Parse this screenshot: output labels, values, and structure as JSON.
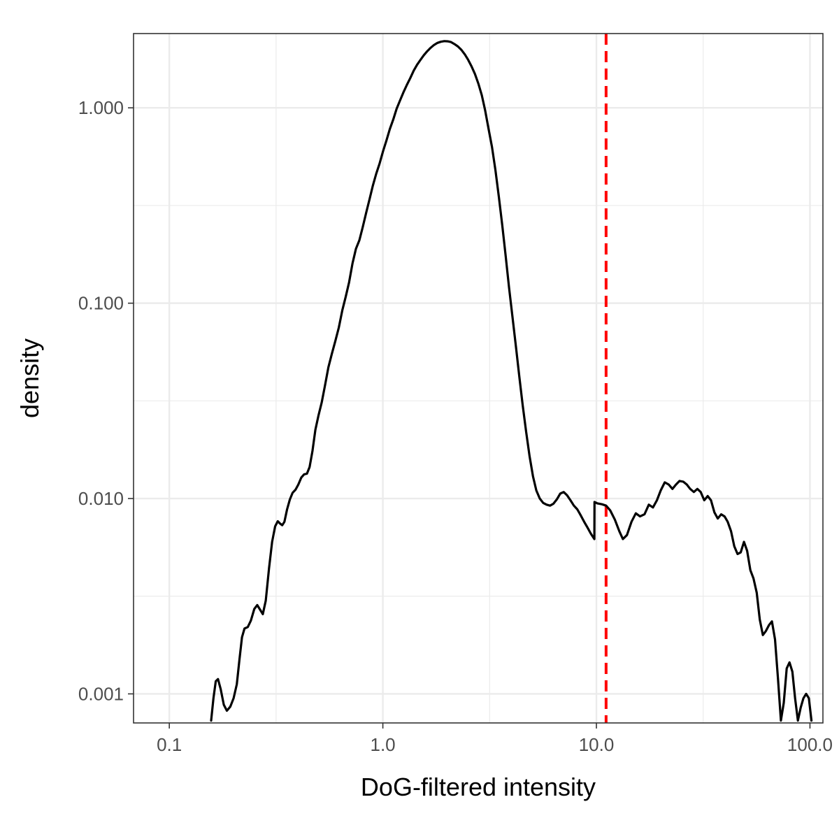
{
  "chart_data": {
    "type": "line",
    "xlabel": "DoG-filtered intensity",
    "ylabel": "density",
    "x_scale": "log10",
    "y_scale": "log10",
    "xlim": [
      0.068,
      115
    ],
    "ylim": [
      0.00071,
      2.4
    ],
    "x_ticks": [
      {
        "value": 0.1,
        "label": "0.1"
      },
      {
        "value": 1,
        "label": "1.0"
      },
      {
        "value": 10,
        "label": "10.0"
      },
      {
        "value": 100,
        "label": "100.0"
      }
    ],
    "y_ticks": [
      {
        "value": 0.001,
        "label": "0.001"
      },
      {
        "value": 0.01,
        "label": "0.010"
      },
      {
        "value": 0.1,
        "label": "0.100"
      },
      {
        "value": 1,
        "label": "1.000"
      }
    ],
    "grid": true,
    "colors": {
      "line": "#000000",
      "threshold": "#ff0000",
      "grid": "#ebebeb",
      "panel_border": "#333333"
    },
    "threshold": {
      "x": 11.1,
      "style": "dashed"
    },
    "series": [
      {
        "points": [
          [
            0.157,
            0.00073
          ],
          [
            0.161,
            0.00095
          ],
          [
            0.165,
            0.00116
          ],
          [
            0.169,
            0.00119
          ],
          [
            0.174,
            0.00106
          ],
          [
            0.18,
            0.00088
          ],
          [
            0.186,
            0.00082
          ],
          [
            0.193,
            0.00086
          ],
          [
            0.2,
            0.00095
          ],
          [
            0.207,
            0.00112
          ],
          [
            0.213,
            0.0015
          ],
          [
            0.219,
            0.00195
          ],
          [
            0.225,
            0.00216
          ],
          [
            0.233,
            0.0022
          ],
          [
            0.241,
            0.00237
          ],
          [
            0.25,
            0.00272
          ],
          [
            0.258,
            0.00285
          ],
          [
            0.266,
            0.0027
          ],
          [
            0.274,
            0.00256
          ],
          [
            0.283,
            0.003
          ],
          [
            0.293,
            0.0044
          ],
          [
            0.303,
            0.006
          ],
          [
            0.313,
            0.0072
          ],
          [
            0.322,
            0.00765
          ],
          [
            0.33,
            0.00745
          ],
          [
            0.338,
            0.0073
          ],
          [
            0.346,
            0.0076
          ],
          [
            0.356,
            0.0088
          ],
          [
            0.367,
            0.0099
          ],
          [
            0.378,
            0.0107
          ],
          [
            0.39,
            0.0111
          ],
          [
            0.402,
            0.0118
          ],
          [
            0.415,
            0.0128
          ],
          [
            0.428,
            0.0133
          ],
          [
            0.441,
            0.0134
          ],
          [
            0.454,
            0.0145
          ],
          [
            0.468,
            0.0175
          ],
          [
            0.483,
            0.0225
          ],
          [
            0.499,
            0.0265
          ],
          [
            0.517,
            0.031
          ],
          [
            0.536,
            0.038
          ],
          [
            0.556,
            0.047
          ],
          [
            0.577,
            0.055
          ],
          [
            0.599,
            0.064
          ],
          [
            0.622,
            0.075
          ],
          [
            0.646,
            0.092
          ],
          [
            0.67,
            0.108
          ],
          [
            0.695,
            0.128
          ],
          [
            0.721,
            0.16
          ],
          [
            0.748,
            0.19
          ],
          [
            0.776,
            0.21
          ],
          [
            0.805,
            0.245
          ],
          [
            0.835,
            0.29
          ],
          [
            0.866,
            0.34
          ],
          [
            0.898,
            0.4
          ],
          [
            0.931,
            0.46
          ],
          [
            0.966,
            0.52
          ],
          [
            1.002,
            0.6
          ],
          [
            1.039,
            0.68
          ],
          [
            1.078,
            0.78
          ],
          [
            1.118,
            0.87
          ],
          [
            1.16,
            0.99
          ],
          [
            1.203,
            1.09
          ],
          [
            1.248,
            1.2
          ],
          [
            1.295,
            1.31
          ],
          [
            1.344,
            1.42
          ],
          [
            1.394,
            1.55
          ],
          [
            1.446,
            1.66
          ],
          [
            1.5,
            1.76
          ],
          [
            1.556,
            1.86
          ],
          [
            1.614,
            1.95
          ],
          [
            1.675,
            2.03
          ],
          [
            1.738,
            2.1
          ],
          [
            1.803,
            2.15
          ],
          [
            1.87,
            2.18
          ],
          [
            1.94,
            2.195
          ],
          [
            2.013,
            2.19
          ],
          [
            2.088,
            2.17
          ],
          [
            2.166,
            2.12
          ],
          [
            2.247,
            2.06
          ],
          [
            2.331,
            1.98
          ],
          [
            2.418,
            1.88
          ],
          [
            2.508,
            1.76
          ],
          [
            2.602,
            1.63
          ],
          [
            2.699,
            1.49
          ],
          [
            2.8,
            1.33
          ],
          [
            2.905,
            1.16
          ],
          [
            3.014,
            0.97
          ],
          [
            3.127,
            0.78
          ],
          [
            3.244,
            0.63
          ],
          [
            3.366,
            0.48
          ],
          [
            3.492,
            0.35
          ],
          [
            3.623,
            0.25
          ],
          [
            3.759,
            0.175
          ],
          [
            3.9,
            0.12
          ],
          [
            4.046,
            0.085
          ],
          [
            4.198,
            0.06
          ],
          [
            4.355,
            0.042
          ],
          [
            4.518,
            0.03
          ],
          [
            4.687,
            0.022
          ],
          [
            4.863,
            0.0165
          ],
          [
            5.045,
            0.013
          ],
          [
            5.234,
            0.011
          ],
          [
            5.43,
            0.01
          ],
          [
            5.633,
            0.0095
          ],
          [
            5.844,
            0.0093
          ],
          [
            6.063,
            0.0092
          ],
          [
            6.29,
            0.0094
          ],
          [
            6.526,
            0.0099
          ],
          [
            6.77,
            0.0106
          ],
          [
            7.024,
            0.0108
          ],
          [
            7.287,
            0.0104
          ],
          [
            7.56,
            0.0098
          ],
          [
            7.843,
            0.0092
          ],
          [
            8.137,
            0.0088
          ],
          [
            8.442,
            0.0082
          ],
          [
            8.759,
            0.0076
          ],
          [
            9.087,
            0.0071
          ],
          [
            9.428,
            0.0066
          ],
          [
            9.781,
            0.0062
          ],
          [
            9.8,
            0.0096
          ],
          [
            10.1,
            0.00945
          ],
          [
            10.6,
            0.00935
          ],
          [
            11.1,
            0.0092
          ],
          [
            11.6,
            0.0087
          ],
          [
            12.2,
            0.0078
          ],
          [
            12.8,
            0.0068
          ],
          [
            13.3,
            0.0062
          ],
          [
            13.9,
            0.0065
          ],
          [
            14.6,
            0.0076
          ],
          [
            15.3,
            0.0084
          ],
          [
            16.0,
            0.0081
          ],
          [
            16.8,
            0.0083
          ],
          [
            17.6,
            0.0093
          ],
          [
            18.4,
            0.009
          ],
          [
            19.2,
            0.0098
          ],
          [
            20.0,
            0.011
          ],
          [
            20.9,
            0.0121
          ],
          [
            21.8,
            0.0118
          ],
          [
            22.7,
            0.0112
          ],
          [
            23.6,
            0.0118
          ],
          [
            24.5,
            0.0123
          ],
          [
            25.5,
            0.0122
          ],
          [
            26.5,
            0.0118
          ],
          [
            27.5,
            0.0112
          ],
          [
            28.6,
            0.0108
          ],
          [
            29.7,
            0.0112
          ],
          [
            30.8,
            0.0108
          ],
          [
            32.0,
            0.0098
          ],
          [
            33.2,
            0.0103
          ],
          [
            34.4,
            0.0098
          ],
          [
            35.7,
            0.0085
          ],
          [
            37.0,
            0.0079
          ],
          [
            38.4,
            0.0083
          ],
          [
            39.8,
            0.0081
          ],
          [
            41.2,
            0.0076
          ],
          [
            42.7,
            0.0068
          ],
          [
            44.2,
            0.0057
          ],
          [
            45.8,
            0.0052
          ],
          [
            47.4,
            0.0053
          ],
          [
            49.1,
            0.006
          ],
          [
            50.8,
            0.0054
          ],
          [
            52.6,
            0.0043
          ],
          [
            54.4,
            0.0039
          ],
          [
            56.3,
            0.0033
          ],
          [
            58.2,
            0.0024
          ],
          [
            60.2,
            0.002
          ],
          [
            62.2,
            0.0021
          ],
          [
            64.3,
            0.00225
          ],
          [
            66.4,
            0.00235
          ],
          [
            68.6,
            0.0019
          ],
          [
            70.8,
            0.0012
          ],
          [
            73.1,
            0.00073
          ],
          [
            75.4,
            0.0009
          ],
          [
            77.8,
            0.00135
          ],
          [
            80.2,
            0.00145
          ],
          [
            82.7,
            0.0013
          ],
          [
            85.2,
            0.00095
          ],
          [
            87.8,
            0.00073
          ],
          [
            90.5,
            0.00085
          ],
          [
            93.2,
            0.00095
          ],
          [
            96.0,
            0.001
          ],
          [
            98.8,
            0.00095
          ],
          [
            101.6,
            0.00073
          ]
        ]
      }
    ]
  }
}
